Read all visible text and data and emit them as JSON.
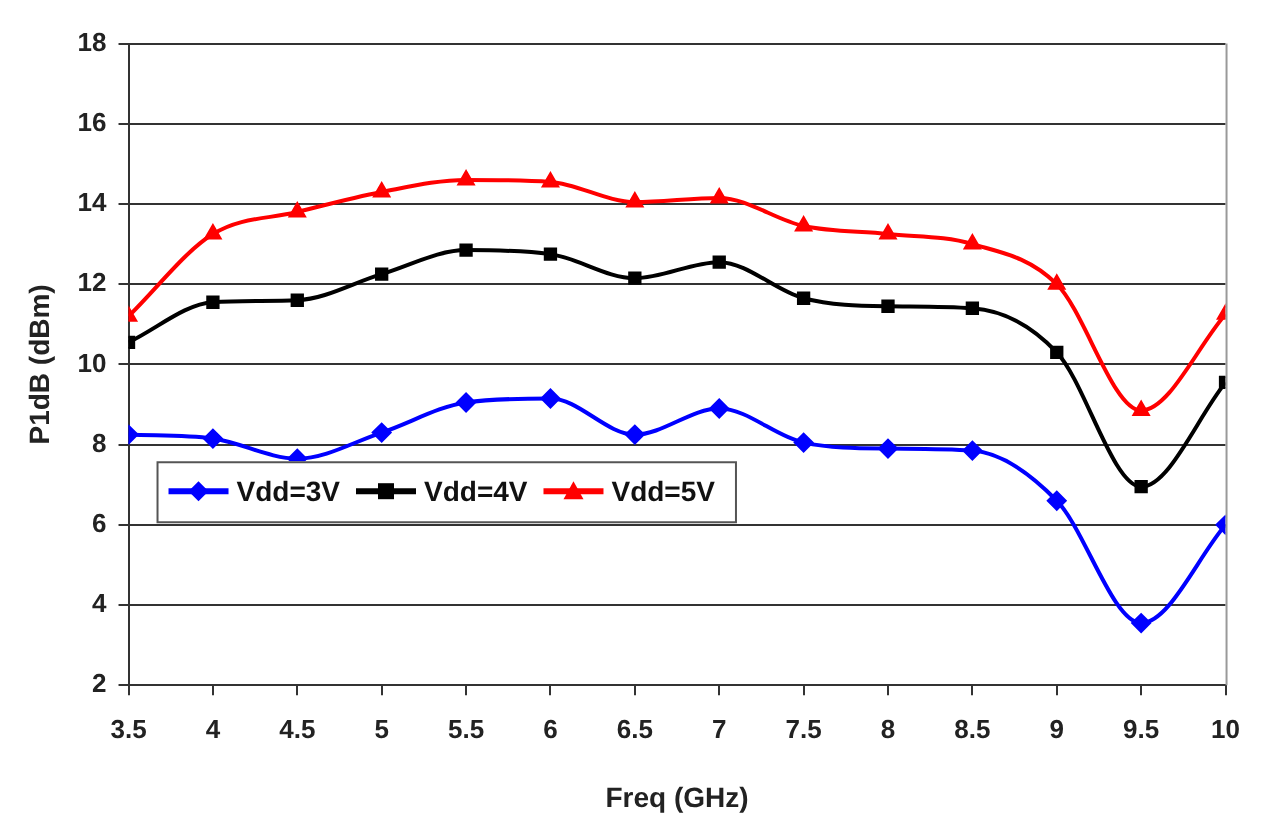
{
  "chart_data": {
    "type": "line",
    "xlabel": "Freq (GHz)",
    "ylabel": "P1dB (dBm)",
    "x": [
      3.5,
      4,
      4.5,
      5,
      5.5,
      6,
      6.5,
      7,
      7.5,
      8,
      8.5,
      9,
      9.5,
      10
    ],
    "series": [
      {
        "name": "Vdd=3V",
        "color": "#0000ff",
        "marker": "diamond",
        "values": [
          8.25,
          8.15,
          7.65,
          8.3,
          9.05,
          9.15,
          8.25,
          8.9,
          8.05,
          7.9,
          7.85,
          6.6,
          3.55,
          6.0
        ]
      },
      {
        "name": "Vdd=4V",
        "color": "#000000",
        "marker": "square",
        "values": [
          10.55,
          11.55,
          11.6,
          12.25,
          12.85,
          12.75,
          12.15,
          12.55,
          11.65,
          11.45,
          11.4,
          10.3,
          6.95,
          9.55
        ]
      },
      {
        "name": "Vdd=5V",
        "color": "#ff0000",
        "marker": "triangle",
        "values": [
          11.2,
          13.25,
          13.8,
          14.3,
          14.6,
          14.55,
          14.05,
          14.15,
          13.45,
          13.25,
          13.0,
          12.0,
          8.85,
          11.25
        ]
      }
    ],
    "xlim": [
      3.5,
      10
    ],
    "xticks": [
      3.5,
      4,
      4.5,
      5,
      5.5,
      6,
      6.5,
      7,
      7.5,
      8,
      8.5,
      9,
      9.5,
      10
    ],
    "ylim": [
      2,
      18
    ],
    "yticks": [
      2,
      4,
      6,
      8,
      10,
      12,
      14,
      16,
      18
    ],
    "grid": "y",
    "legend": "bottom left",
    "line_style": "solid"
  }
}
